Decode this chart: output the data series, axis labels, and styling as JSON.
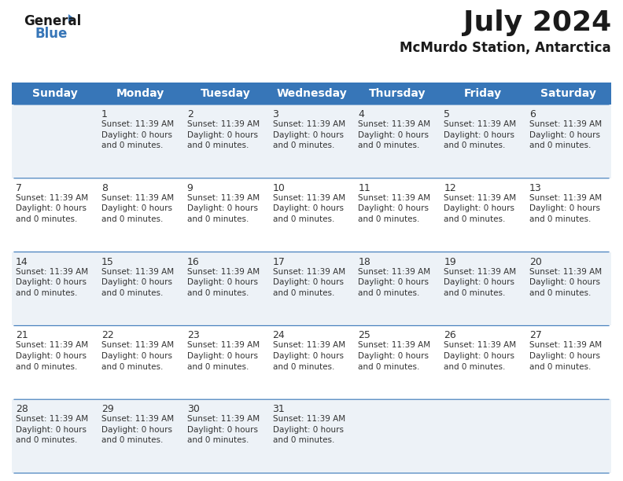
{
  "title": "July 2024",
  "subtitle": "McMurdo Station, Antarctica",
  "days_of_week": [
    "Sunday",
    "Monday",
    "Tuesday",
    "Wednesday",
    "Thursday",
    "Friday",
    "Saturday"
  ],
  "header_bg_color": "#3776b8",
  "header_text_color": "#ffffff",
  "bg_color": "#ffffff",
  "cell_bg_even": "#edf2f7",
  "cell_bg_odd": "#ffffff",
  "row_line_color": "#3776b8",
  "text_color": "#333333",
  "calendar_data": [
    [
      null,
      1,
      2,
      3,
      4,
      5,
      6
    ],
    [
      7,
      8,
      9,
      10,
      11,
      12,
      13
    ],
    [
      14,
      15,
      16,
      17,
      18,
      19,
      20
    ],
    [
      21,
      22,
      23,
      24,
      25,
      26,
      27
    ],
    [
      28,
      29,
      30,
      31,
      null,
      null,
      null
    ]
  ],
  "cell_text": "Sunset: 11:39 AM\nDaylight: 0 hours\nand 0 minutes.",
  "title_fontsize": 26,
  "subtitle_fontsize": 12,
  "header_fontsize": 10,
  "day_num_fontsize": 9,
  "cell_text_fontsize": 7.5,
  "logo_fontsize": 12,
  "logo_color_general": "#1a1a1a",
  "logo_color_blue": "#3776b8",
  "fig_width": 7.92,
  "fig_height": 6.12,
  "dpi": 100
}
